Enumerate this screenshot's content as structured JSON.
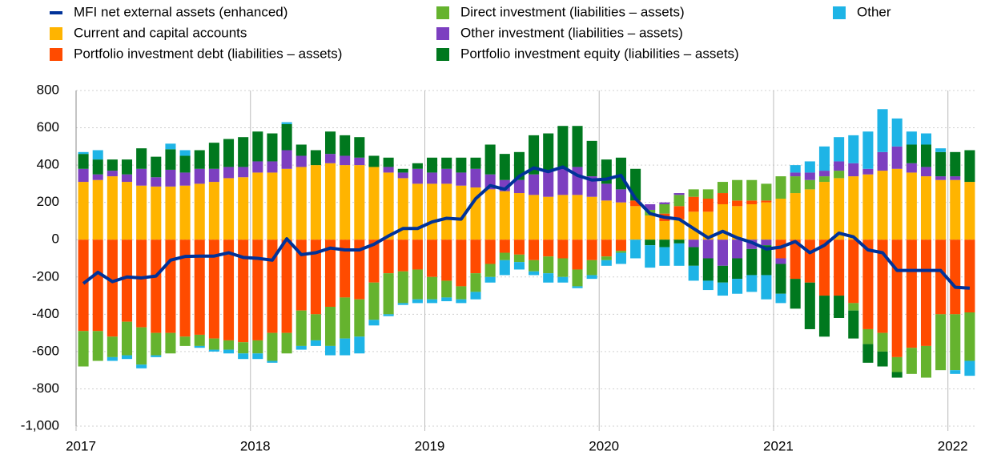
{
  "chart_data": {
    "type": "stacked_bar",
    "categories": [
      "2017",
      null,
      null,
      null,
      null,
      null,
      null,
      null,
      null,
      null,
      null,
      null,
      "2018",
      null,
      null,
      null,
      null,
      null,
      null,
      null,
      null,
      null,
      null,
      null,
      "2019",
      null,
      null,
      null,
      null,
      null,
      null,
      null,
      null,
      null,
      null,
      null,
      "2020",
      null,
      null,
      null,
      null,
      null,
      null,
      null,
      null,
      null,
      null,
      null,
      "2021",
      null,
      null,
      null,
      null,
      null,
      null,
      null,
      null,
      null,
      null,
      null,
      "2022",
      null
    ],
    "ylim": [
      -1000,
      800
    ],
    "yticks": [
      {
        "value": -1000,
        "label": "-1,000"
      },
      -800,
      -600,
      -400,
      -200,
      0,
      200,
      400,
      600,
      800
    ],
    "grid": true,
    "series": [
      {
        "name": "MFI net external assets (enhanced)",
        "type": "line",
        "color": "#003299",
        "values": [
          -235,
          -175,
          -225,
          -200,
          -205,
          -195,
          -110,
          -90,
          -88,
          -88,
          -70,
          -95,
          -100,
          -110,
          5,
          -80,
          -70,
          -45,
          -55,
          -55,
          -25,
          20,
          60,
          60,
          95,
          115,
          110,
          220,
          290,
          270,
          340,
          385,
          365,
          390,
          345,
          320,
          325,
          345,
          220,
          140,
          120,
          110,
          60,
          10,
          45,
          10,
          -15,
          -50,
          -40,
          -10,
          -70,
          -30,
          35,
          15,
          -55,
          -70,
          -165,
          -165,
          -165,
          -165,
          -255,
          -260
        ]
      },
      {
        "name": "Current and capital accounts",
        "color": "#ffb400",
        "values": [
          310,
          320,
          340,
          310,
          290,
          285,
          285,
          290,
          300,
          310,
          330,
          335,
          360,
          360,
          380,
          390,
          400,
          410,
          400,
          400,
          390,
          360,
          330,
          300,
          300,
          300,
          290,
          280,
          270,
          260,
          250,
          240,
          230,
          240,
          240,
          230,
          210,
          200,
          180,
          130,
          100,
          110,
          150,
          150,
          190,
          180,
          190,
          200,
          220,
          250,
          270,
          310,
          330,
          340,
          350,
          370,
          380,
          360,
          340,
          320,
          320,
          310
        ]
      },
      {
        "name": "Portfolio investment debt (liabilities – assets)",
        "color": "#ff4b00",
        "values": [
          -490,
          -490,
          -520,
          -440,
          -470,
          -500,
          -500,
          -520,
          -510,
          -530,
          -540,
          -550,
          -540,
          -500,
          -500,
          -380,
          -400,
          -360,
          -310,
          -320,
          -230,
          -180,
          -170,
          -160,
          -200,
          -220,
          -250,
          -180,
          -130,
          -70,
          -80,
          -110,
          -90,
          -100,
          -160,
          -110,
          -90,
          -60,
          30,
          0,
          40,
          70,
          80,
          70,
          60,
          30,
          20,
          10,
          -100,
          -210,
          -230,
          -300,
          -300,
          -340,
          -480,
          -500,
          -630,
          -580,
          -570,
          -400,
          -400,
          -390
        ]
      },
      {
        "name": "Direct investment (liabilities – assets)",
        "color": "#65b32e",
        "values": [
          -190,
          -160,
          -110,
          -180,
          -200,
          -120,
          -110,
          -50,
          -60,
          -60,
          -50,
          -60,
          -70,
          -150,
          -110,
          -190,
          -140,
          -210,
          -220,
          -200,
          -200,
          -220,
          -170,
          -160,
          -120,
          -90,
          -70,
          -100,
          -70,
          -40,
          -40,
          -60,
          -90,
          -100,
          -90,
          -80,
          -20,
          -10,
          0,
          30,
          50,
          60,
          40,
          50,
          60,
          110,
          110,
          90,
          120,
          90,
          50,
          30,
          40,
          -40,
          -80,
          -100,
          -80,
          -140,
          -170,
          -300,
          -300,
          -260
        ]
      },
      {
        "name": "Other investment (liabilities – assets)",
        "color": "#7c3fc0",
        "values": [
          70,
          30,
          30,
          40,
          90,
          50,
          90,
          70,
          80,
          70,
          60,
          55,
          60,
          60,
          100,
          60,
          0,
          50,
          50,
          40,
          0,
          30,
          30,
          80,
          60,
          80,
          70,
          100,
          80,
          60,
          70,
          110,
          140,
          140,
          150,
          110,
          90,
          70,
          0,
          30,
          10,
          10,
          -40,
          -100,
          -140,
          -100,
          -50,
          -30,
          -30,
          20,
          40,
          30,
          50,
          70,
          30,
          100,
          120,
          50,
          50,
          20,
          20,
          0
        ]
      },
      {
        "name": "Portfolio investment equity (liabilities – assets)",
        "color": "#00781e",
        "values": [
          80,
          80,
          60,
          80,
          110,
          110,
          110,
          90,
          100,
          140,
          150,
          160,
          160,
          150,
          140,
          60,
          80,
          120,
          110,
          110,
          60,
          50,
          20,
          30,
          80,
          60,
          80,
          60,
          160,
          140,
          150,
          210,
          200,
          230,
          220,
          190,
          130,
          170,
          170,
          -30,
          -40,
          -20,
          -100,
          -120,
          -90,
          -110,
          -140,
          -160,
          -160,
          -160,
          -250,
          -220,
          -120,
          -150,
          -100,
          -80,
          -30,
          100,
          120,
          130,
          130,
          170
        ]
      },
      {
        "name": "Other",
        "color": "#1eb4e6",
        "values": [
          10,
          50,
          -20,
          -20,
          -20,
          -10,
          30,
          30,
          -10,
          -10,
          -20,
          -30,
          -30,
          -10,
          10,
          -20,
          -30,
          -50,
          -90,
          -90,
          -30,
          -10,
          -10,
          -20,
          -20,
          -20,
          -20,
          -40,
          -30,
          -80,
          -40,
          -20,
          -50,
          -30,
          -10,
          -20,
          -30,
          -60,
          -100,
          -120,
          -100,
          -120,
          -80,
          -50,
          -70,
          -80,
          -90,
          -130,
          -50,
          40,
          60,
          130,
          130,
          150,
          200,
          230,
          150,
          70,
          60,
          20,
          -20,
          -80
        ]
      }
    ]
  }
}
